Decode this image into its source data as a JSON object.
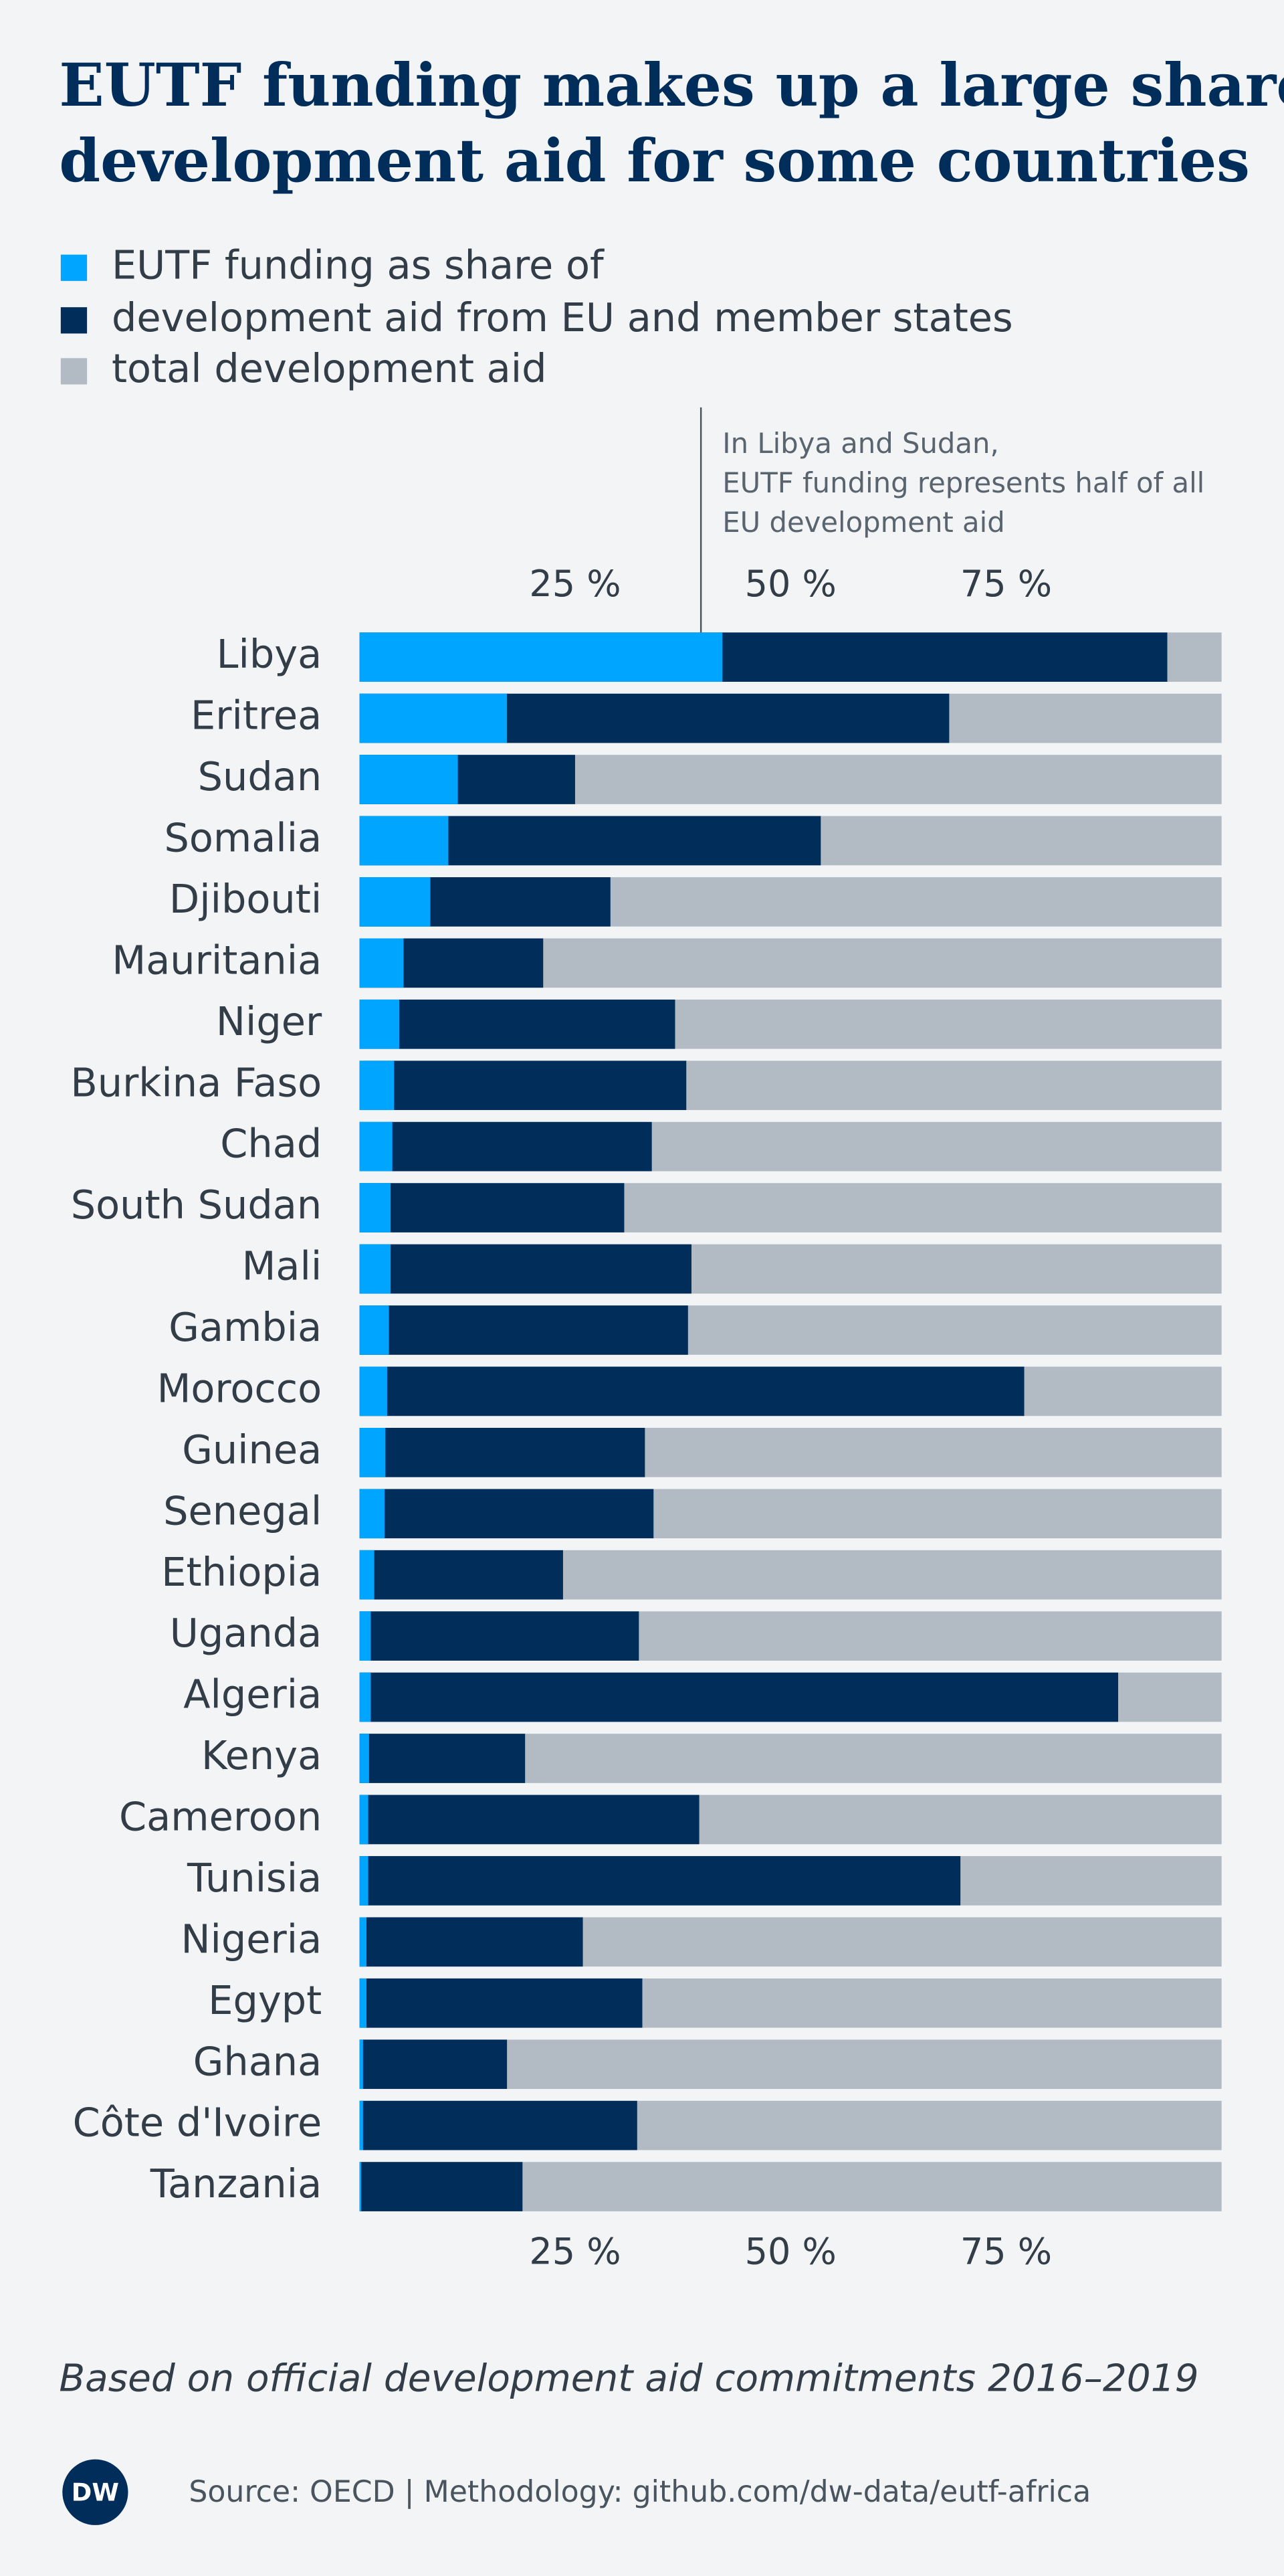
{
  "chart_data": {
    "type": "overlap-bar",
    "title": [
      "EUTF funding makes up a large share of",
      "development aid for some countries"
    ],
    "legend_title": "EUTF funding as share of",
    "categories": [
      "Libya",
      "Eritrea",
      "Sudan",
      "Somalia",
      "Djibouti",
      "Mauritania",
      "Niger",
      "Burkina Faso",
      "Chad",
      "South Sudan",
      "Mali",
      "Gambia",
      "Morocco",
      "Guinea",
      "Senegal",
      "Ethiopia",
      "Uganda",
      "Algeria",
      "Kenya",
      "Cameroon",
      "Tunisia",
      "Nigeria",
      "Egypt",
      "Ghana",
      "Côte d'Ivoire",
      "Tanzania"
    ],
    "series": [
      {
        "name": "total development aid",
        "color": "#b2bbc3",
        "values": [
          100,
          100,
          100,
          100,
          100,
          100,
          100,
          100,
          100,
          100,
          100,
          100,
          100,
          100,
          100,
          100,
          100,
          100,
          100,
          100,
          100,
          100,
          100,
          100,
          100,
          100
        ]
      },
      {
        "name": "development aid from EU and member states",
        "color": "#002d5a",
        "values": [
          93.7,
          68.4,
          25.0,
          53.5,
          29.1,
          21.3,
          36.6,
          37.9,
          33.9,
          30.7,
          38.5,
          38.1,
          77.1,
          33.1,
          34.1,
          23.6,
          32.4,
          88.0,
          19.2,
          39.4,
          69.7,
          25.9,
          32.8,
          17.1,
          32.2,
          18.9
        ]
      },
      {
        "name": "EUTF funding",
        "color": "#00a5ff",
        "values": [
          42.1,
          17.1,
          11.4,
          10.3,
          8.2,
          5.1,
          4.6,
          4.0,
          3.8,
          3.6,
          3.6,
          3.4,
          3.2,
          3.0,
          2.9,
          1.7,
          1.3,
          1.3,
          1.1,
          1.0,
          1.0,
          0.8,
          0.8,
          0.4,
          0.4,
          0.2
        ]
      }
    ],
    "legend_order": [
      2,
      1,
      0
    ],
    "xlim": [
      0,
      100
    ],
    "xticks": [
      {
        "value": 25,
        "label": "25 %"
      },
      {
        "value": 50,
        "label": "50 %"
      },
      {
        "value": 75,
        "label": "75 %"
      }
    ],
    "grid": false,
    "annotation": {
      "x": 39.6,
      "lines": [
        "In Libya and Sudan,",
        "EUTF funding represents half of all",
        "EU development aid"
      ]
    },
    "footnote": "Based on official development aid commitments 2016–2019",
    "source": "Source: OECD | Methodology: github.com/dw-data/eutf-africa",
    "logo": "DW"
  }
}
